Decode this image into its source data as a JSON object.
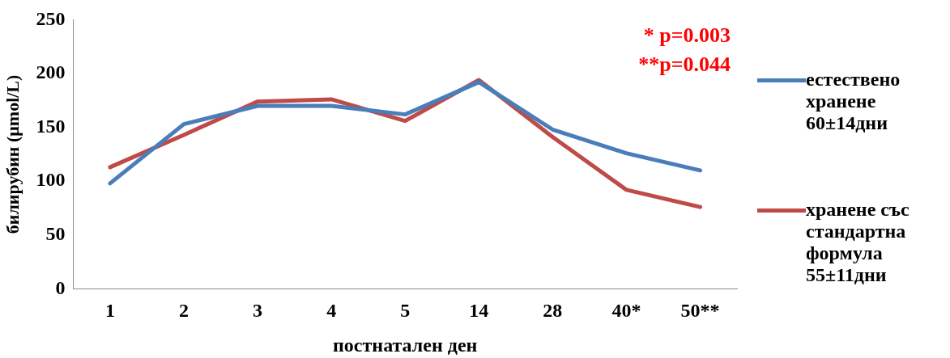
{
  "chart_data": {
    "type": "line",
    "xlabel": "постнатален ден",
    "ylabel": "билирубин (μmol/L)",
    "categories": [
      "1",
      "2",
      "3",
      "4",
      "5",
      "14",
      "28",
      "40*",
      "50**"
    ],
    "ylim": [
      0,
      250
    ],
    "yticks": [
      0,
      50,
      100,
      150,
      200,
      250
    ],
    "legend": "right",
    "marker": "none",
    "line_style": "solid",
    "annotations": [
      "* p=0.003",
      "**p=0.044"
    ],
    "series": [
      {
        "name": "естествено хранене 60±14дни",
        "color": "#4a7ebb",
        "values": [
          98,
          153,
          170,
          170,
          162,
          192,
          148,
          126,
          110
        ]
      },
      {
        "name": "хранене със стандартна формула 55±11дни",
        "color": "#be4b48",
        "values": [
          113,
          143,
          174,
          176,
          156,
          194,
          141,
          92,
          76
        ]
      }
    ]
  }
}
